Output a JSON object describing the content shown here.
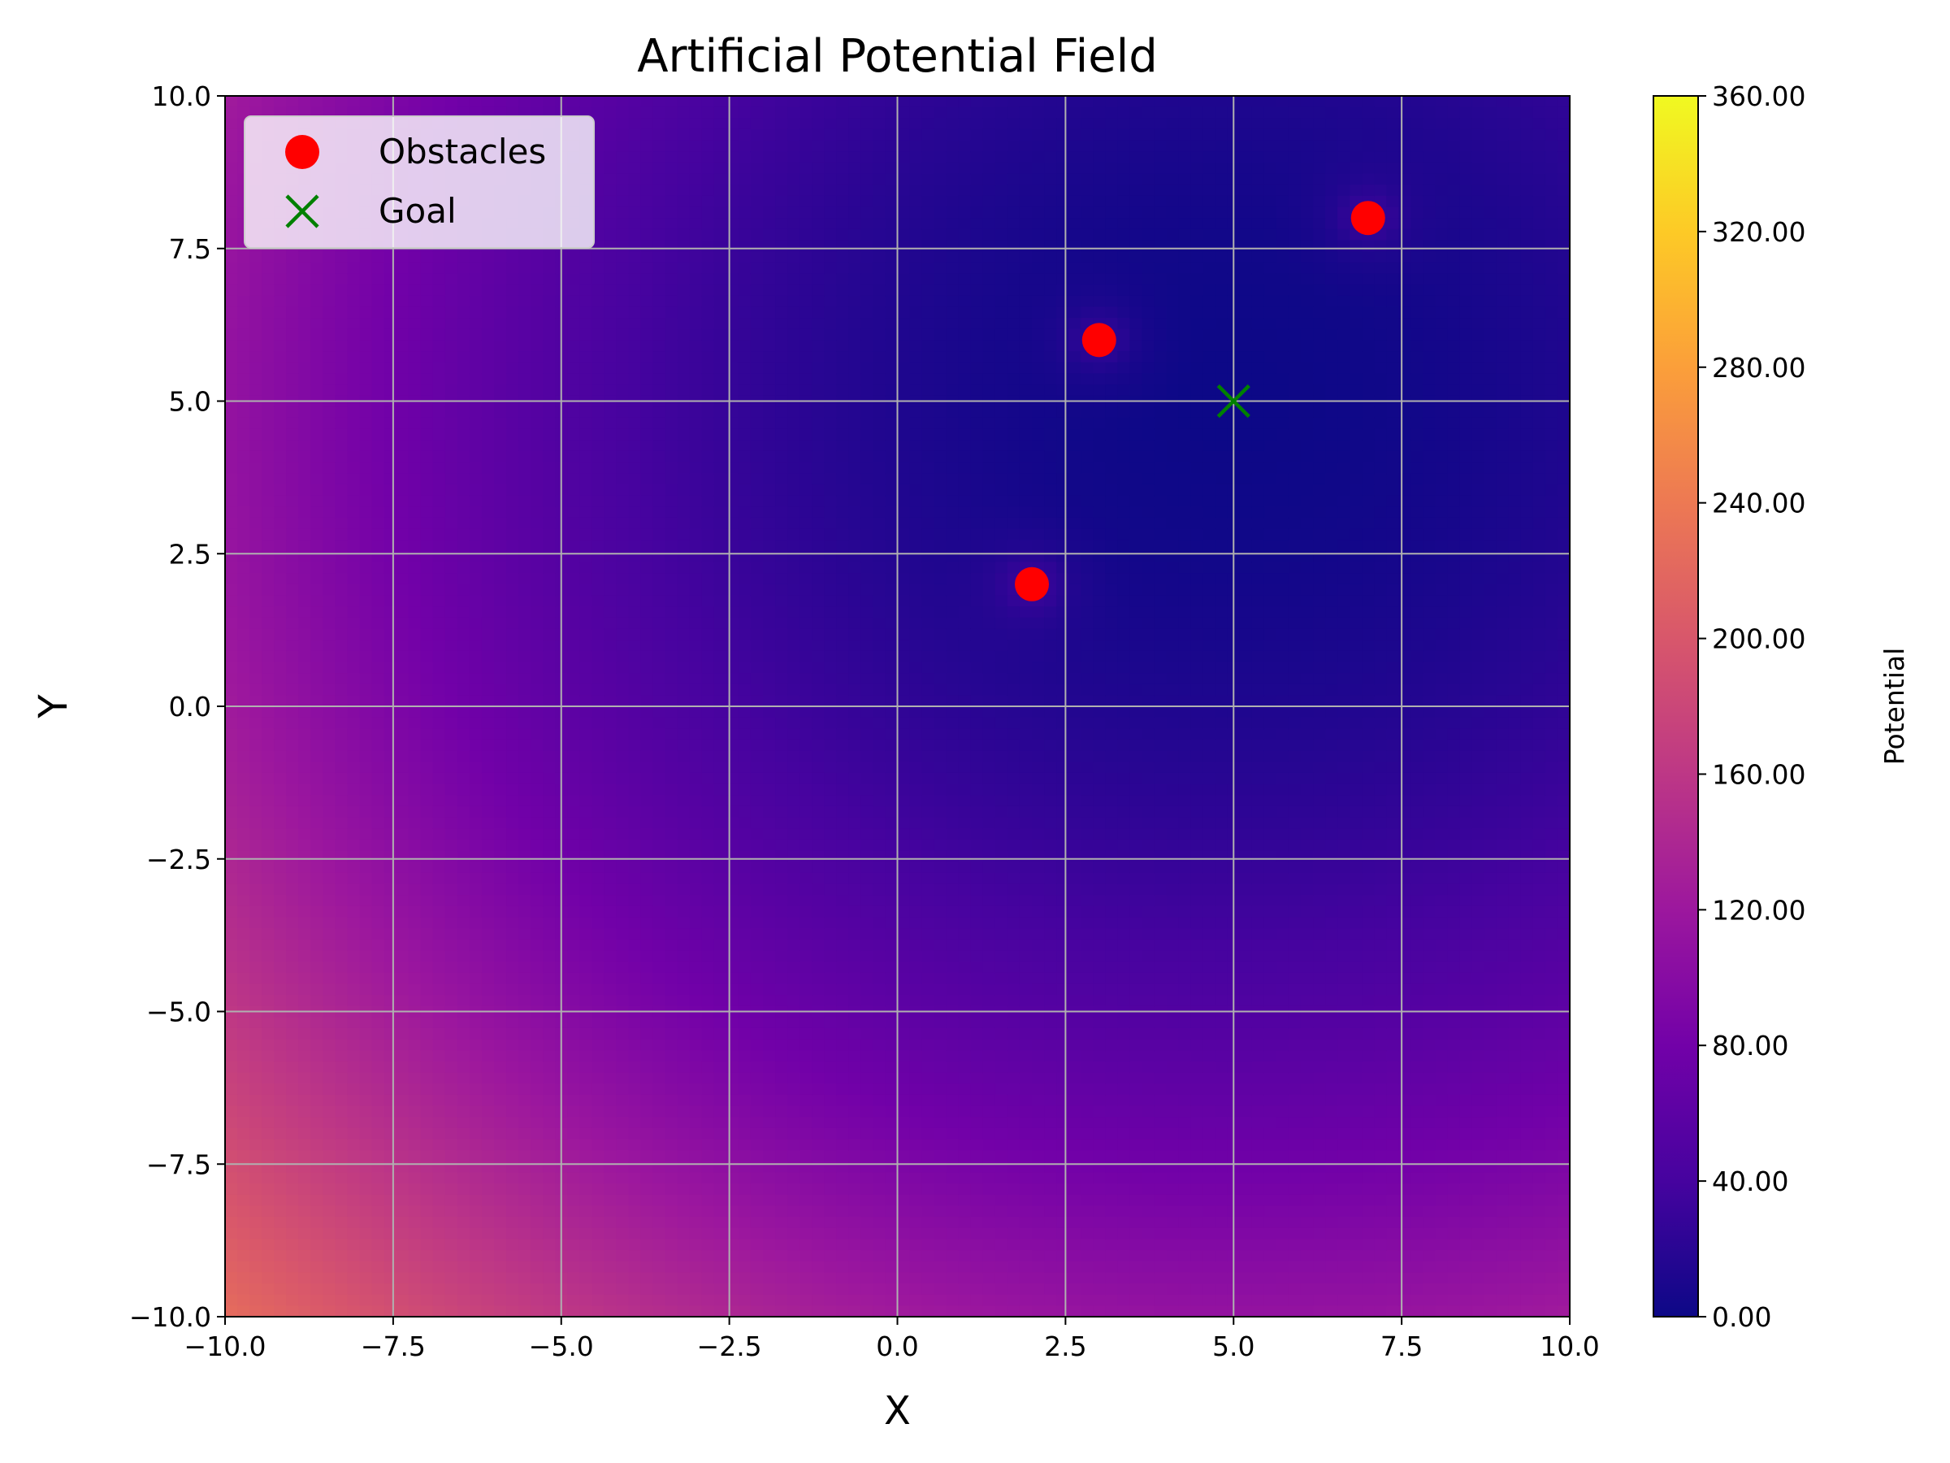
{
  "chart_data": {
    "type": "heatmap",
    "title": "Artificial Potential Field",
    "xlabel": "X",
    "ylabel": "Y",
    "xlim": [
      -10,
      10
    ],
    "ylim": [
      -10,
      10
    ],
    "x_ticks": [
      -10,
      -7.5,
      -5,
      -2.5,
      0,
      2.5,
      5,
      7.5,
      10
    ],
    "y_ticks": [
      -10,
      -7.5,
      -5,
      -2.5,
      0,
      2.5,
      5,
      7.5,
      10
    ],
    "x_tick_labels": [
      "−10.0",
      "−7.5",
      "−5.0",
      "−2.5",
      "0.0",
      "2.5",
      "5.0",
      "7.5",
      "10.0"
    ],
    "y_tick_labels": [
      "−10.0",
      "−7.5",
      "−5.0",
      "−2.5",
      "0.0",
      "2.5",
      "5.0",
      "7.5",
      "10.0"
    ],
    "grid": true,
    "colormap": "plasma",
    "colorbar": {
      "label": "Potential",
      "range": [
        0,
        360
      ],
      "ticks": [
        0,
        40,
        80,
        120,
        160,
        200,
        240,
        280,
        320,
        360
      ],
      "tick_labels": [
        "0.00",
        "40.00",
        "80.00",
        "120.00",
        "160.00",
        "200.00",
        "240.00",
        "280.00",
        "320.00",
        "360.00"
      ]
    },
    "legend": {
      "placement": "upper-left"
    },
    "series": [
      {
        "name": "Obstacles",
        "type": "scatter",
        "marker": "circle",
        "color": "#ff0000",
        "points": [
          [
            2,
            2
          ],
          [
            3,
            6
          ],
          [
            7,
            8
          ]
        ]
      },
      {
        "name": "Goal",
        "type": "scatter",
        "marker": "x",
        "color": "#008000",
        "points": [
          [
            5,
            5
          ]
        ]
      }
    ]
  }
}
